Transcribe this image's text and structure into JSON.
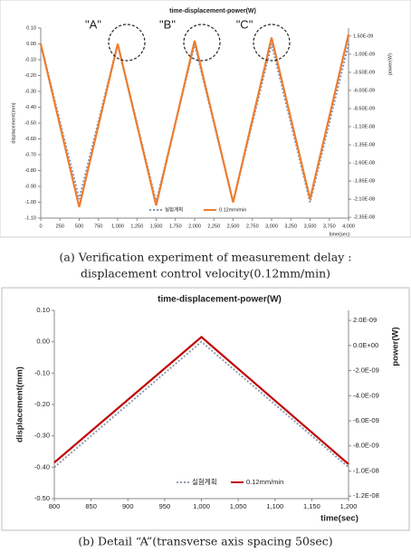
{
  "chart_data": [
    {
      "type": "line",
      "title": "time-displacement-power(W)",
      "x_label": "time(sec)",
      "y_label": "displacement(mm)",
      "y2_label": "power(W)",
      "annotations": [
        "\"A\"",
        "\"B\"",
        "\"C\""
      ],
      "x": [
        0,
        500,
        1000,
        1500,
        2000,
        2500,
        3000,
        3500,
        4000
      ],
      "series": [
        {
          "name": "실험계획",
          "color": "#7f93b8",
          "dash": true,
          "values": [
            0,
            -0.98,
            0,
            -1.0,
            0,
            -1.0,
            0,
            -1.0,
            0
          ]
        },
        {
          "name": "0.12mm/min",
          "color": "#ed7d31",
          "dash": false,
          "values": [
            0,
            -1.03,
            0,
            -1.02,
            0.02,
            -1.0,
            0.04,
            -0.98,
            0.06
          ]
        }
      ],
      "xlim": [
        0,
        4000
      ],
      "xticks": [
        0,
        250,
        500,
        750,
        {
          "value": 1000,
          "label": "1,000"
        },
        {
          "value": 1250,
          "label": "1,250"
        },
        {
          "value": 1500,
          "label": "1,500"
        },
        {
          "value": 1750,
          "label": "1,750"
        },
        {
          "value": 2000,
          "label": "2,000"
        },
        {
          "value": 2250,
          "label": "2,250"
        },
        {
          "value": 2500,
          "label": "2,500"
        },
        {
          "value": 2750,
          "label": "2,750"
        },
        {
          "value": 3000,
          "label": "3,000"
        },
        {
          "value": 3250,
          "label": "3,250"
        },
        {
          "value": 3500,
          "label": "3,500"
        },
        {
          "value": 3750,
          "label": "3,750"
        },
        {
          "value": 4000,
          "label": "4,000"
        }
      ],
      "ylim": [
        -1.1,
        0.1
      ],
      "yticks": [
        {
          "value": 0.1,
          "label": "0.10"
        },
        {
          "value": 0,
          "label": "0.00"
        },
        {
          "value": -0.1,
          "label": "-0.10"
        },
        {
          "value": -0.2,
          "label": "-0.20"
        },
        {
          "value": -0.3,
          "label": "-0.30"
        },
        {
          "value": -0.4,
          "label": "-0.40"
        },
        {
          "value": -0.5,
          "label": "-0.50"
        },
        {
          "value": -0.6,
          "label": "-0.60"
        },
        {
          "value": -0.7,
          "label": "-0.70"
        },
        {
          "value": -0.8,
          "label": "-0.80"
        },
        {
          "value": -0.9,
          "label": "-0.90"
        },
        {
          "value": -1.0,
          "label": "-1.00"
        },
        {
          "value": -1.1,
          "label": "-1.10"
        }
      ],
      "y2lim": [
        -2.36e-08,
        2.6e-09
      ],
      "y2ticks": [
        {
          "value": 1.5e-09,
          "label": "1.50E-09"
        },
        {
          "value": -1e-09,
          "label": "-1.00E-09"
        },
        {
          "value": -3.5e-09,
          "label": "-3.50E-09"
        },
        {
          "value": -6e-09,
          "label": "-6.00E-09"
        },
        {
          "value": -8.5e-09,
          "label": "-8.50E-09"
        },
        {
          "value": -1.1e-08,
          "label": "-1.10E-08"
        },
        {
          "value": -1.35e-08,
          "label": "-1.35E-08"
        },
        {
          "value": -1.6e-08,
          "label": "-1.60E-08"
        },
        {
          "value": -1.85e-08,
          "label": "-1.85E-08"
        },
        {
          "value": -2.1e-08,
          "label": "-2.10E-08"
        },
        {
          "value": -2.35e-08,
          "label": "-2.35E-08"
        }
      ],
      "grid": false,
      "legend": "bottom"
    },
    {
      "type": "line",
      "title": "time-displacement-power(W)",
      "x_label": "time(sec)",
      "y_label": "displacement(mm)",
      "y2_label": "power(W)",
      "annotations": [],
      "x": [
        800,
        1000,
        1200
      ],
      "series": [
        {
          "name": "실험계획",
          "color": "#8e9aae",
          "dash": true,
          "values": [
            -0.4,
            0,
            -0.4
          ]
        },
        {
          "name": "0.12mm/min",
          "color": "#c00000",
          "dash": false,
          "values": [
            -0.385,
            0.015,
            -0.39
          ]
        }
      ],
      "xlim": [
        800,
        1200
      ],
      "xticks": [
        800,
        850,
        900,
        950,
        {
          "value": 1000,
          "label": "1,000"
        },
        {
          "value": 1050,
          "label": "1,050"
        },
        {
          "value": 1100,
          "label": "1,100"
        },
        {
          "value": 1150,
          "label": "1,150"
        },
        {
          "value": 1200,
          "label": "1,200"
        }
      ],
      "ylim": [
        -0.5,
        0.1
      ],
      "yticks": [
        {
          "value": 0.1,
          "label": "0.10"
        },
        {
          "value": 0,
          "label": "0.00"
        },
        {
          "value": -0.1,
          "label": "-0.10"
        },
        {
          "value": -0.2,
          "label": "-0.20"
        },
        {
          "value": -0.3,
          "label": "-0.30"
        },
        {
          "value": -0.4,
          "label": "-0.40"
        },
        {
          "value": -0.5,
          "label": "-0.50"
        }
      ],
      "y2lim": [
        -1.22e-08,
        2.8e-09
      ],
      "y2ticks": [
        {
          "value": 2e-09,
          "label": "2.0E-09"
        },
        {
          "value": 0,
          "label": "0.0E+00"
        },
        {
          "value": -2e-09,
          "label": "-2.0E-09"
        },
        {
          "value": -4e-09,
          "label": "-4.0E-09"
        },
        {
          "value": -6e-09,
          "label": "-6.0E-09"
        },
        {
          "value": -8e-09,
          "label": "-8.0E-09"
        },
        {
          "value": -1e-08,
          "label": "-1.0E-08"
        },
        {
          "value": -1.2e-08,
          "label": "-1.2E-08"
        }
      ],
      "grid": false,
      "legend": "bottom"
    }
  ],
  "captions": [
    "(a) Verification experiment of measurement delay :",
    "displacement control velocity(0.12mm/min)",
    "(b) Detail “A”(transverse axis spacing 50sec)"
  ]
}
